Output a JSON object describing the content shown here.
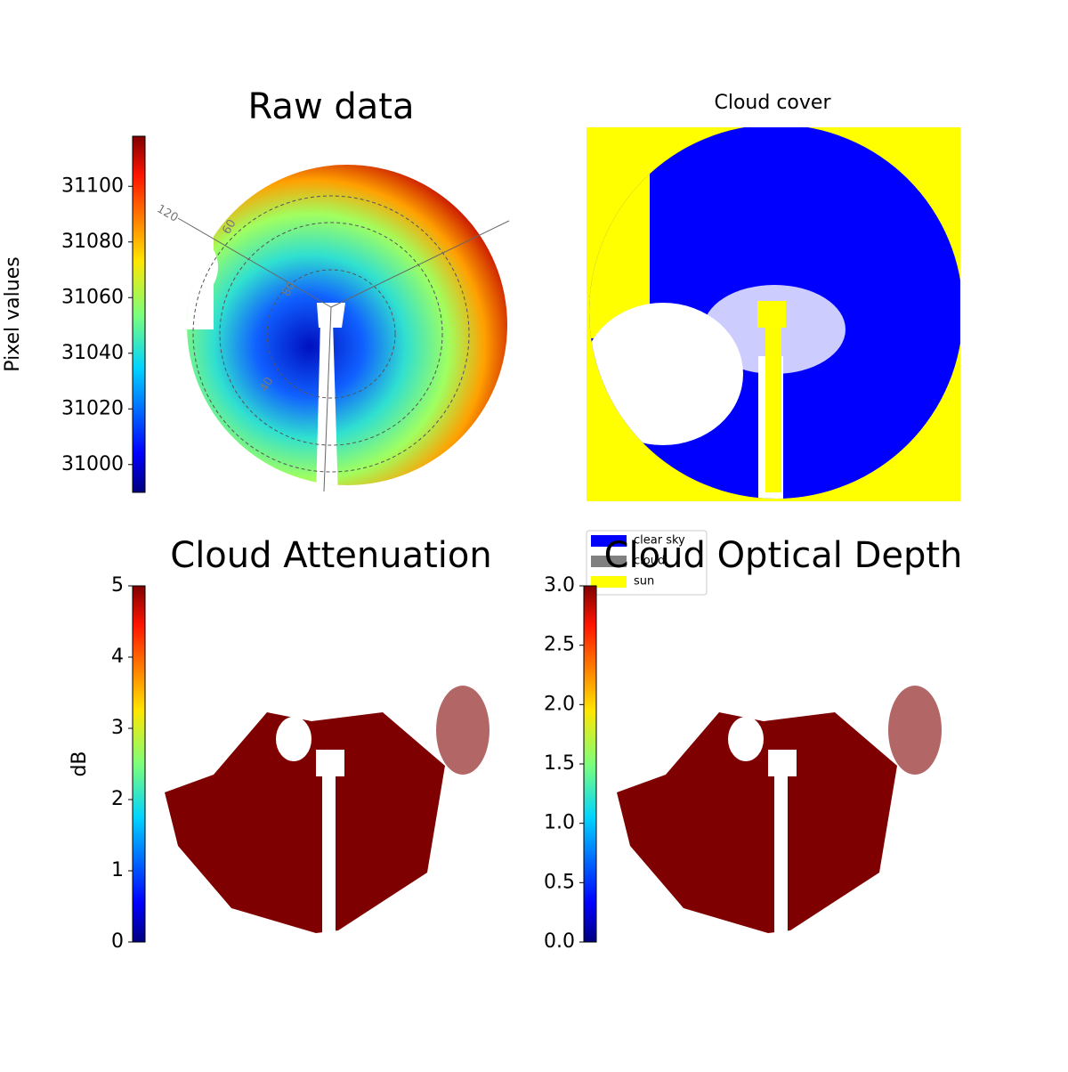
{
  "chart_data": [
    {
      "type": "image",
      "title": "Raw data",
      "colormap": "jet",
      "colorbar_label": "Pixel values",
      "ylim": [
        30990,
        31118
      ],
      "yticks": [
        31000,
        31020,
        31040,
        31060,
        31080,
        31100
      ],
      "annotations": [
        "120",
        "60",
        "80",
        "40"
      ]
    },
    {
      "type": "classification",
      "title": "Cloud cover",
      "series": [
        {
          "name": "clear sky",
          "color": "#0000ff"
        },
        {
          "name": "cloud",
          "color": "#808080"
        },
        {
          "name": "sun",
          "color": "#ffff00"
        }
      ]
    },
    {
      "type": "image",
      "title": "Cloud Attenuation",
      "colormap": "jet",
      "colorbar_label": "dB",
      "ylim": [
        0,
        5
      ],
      "yticks": [
        0,
        1,
        2,
        3,
        4,
        5
      ]
    },
    {
      "type": "image",
      "title": "Cloud Optical Depth",
      "colormap": "jet",
      "ylim": [
        0,
        3
      ],
      "yticks": [
        {
          "value": 0,
          "label": "0.0"
        },
        0.5,
        {
          "value": 1,
          "label": "1.0"
        },
        1.5,
        {
          "value": 2,
          "label": "2.0"
        },
        2.5,
        {
          "value": 3,
          "label": "3.0"
        }
      ]
    }
  ]
}
